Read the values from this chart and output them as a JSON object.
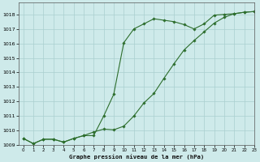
{
  "title": "Graphe pression niveau de la mer (hPa)",
  "bg_color": "#ceeaea",
  "grid_color": "#aacfcf",
  "line_color": "#2d6e2d",
  "xlim": [
    -0.5,
    23
  ],
  "ylim": [
    1009,
    1018.8
  ],
  "yticks": [
    1009,
    1010,
    1011,
    1012,
    1013,
    1014,
    1015,
    1016,
    1017,
    1018
  ],
  "xticks": [
    0,
    1,
    2,
    3,
    4,
    5,
    6,
    7,
    8,
    9,
    10,
    11,
    12,
    13,
    14,
    15,
    16,
    17,
    18,
    19,
    20,
    21,
    22,
    23
  ],
  "s1_x": [
    0,
    1,
    2,
    3,
    4,
    5,
    6,
    7,
    8,
    9,
    10,
    11,
    12,
    13,
    14,
    15,
    16,
    17,
    18,
    19,
    20,
    21,
    22,
    23
  ],
  "s1_y": [
    1009.45,
    1009.1,
    1009.4,
    1009.4,
    1009.2,
    1009.45,
    1009.65,
    1009.65,
    1011.0,
    1012.5,
    1016.05,
    1017.0,
    1017.35,
    1017.7,
    1017.6,
    1017.5,
    1017.3,
    1017.0,
    1017.35,
    1017.95,
    1018.0,
    1018.05,
    1018.15,
    1018.2
  ],
  "s2_x": [
    0,
    1,
    2,
    3,
    4,
    5,
    6,
    7,
    8,
    9,
    10,
    11,
    12,
    13,
    14,
    15,
    16,
    17,
    18,
    19,
    20,
    21,
    22,
    23
  ],
  "s2_y": [
    1009.45,
    1009.1,
    1009.4,
    1009.4,
    1009.2,
    1009.45,
    1009.65,
    1009.9,
    1010.1,
    1010.05,
    1010.3,
    1011.0,
    1011.9,
    1012.55,
    1013.6,
    1014.6,
    1015.55,
    1016.2,
    1016.8,
    1017.4,
    1017.8,
    1018.05,
    1018.15,
    1018.2
  ]
}
